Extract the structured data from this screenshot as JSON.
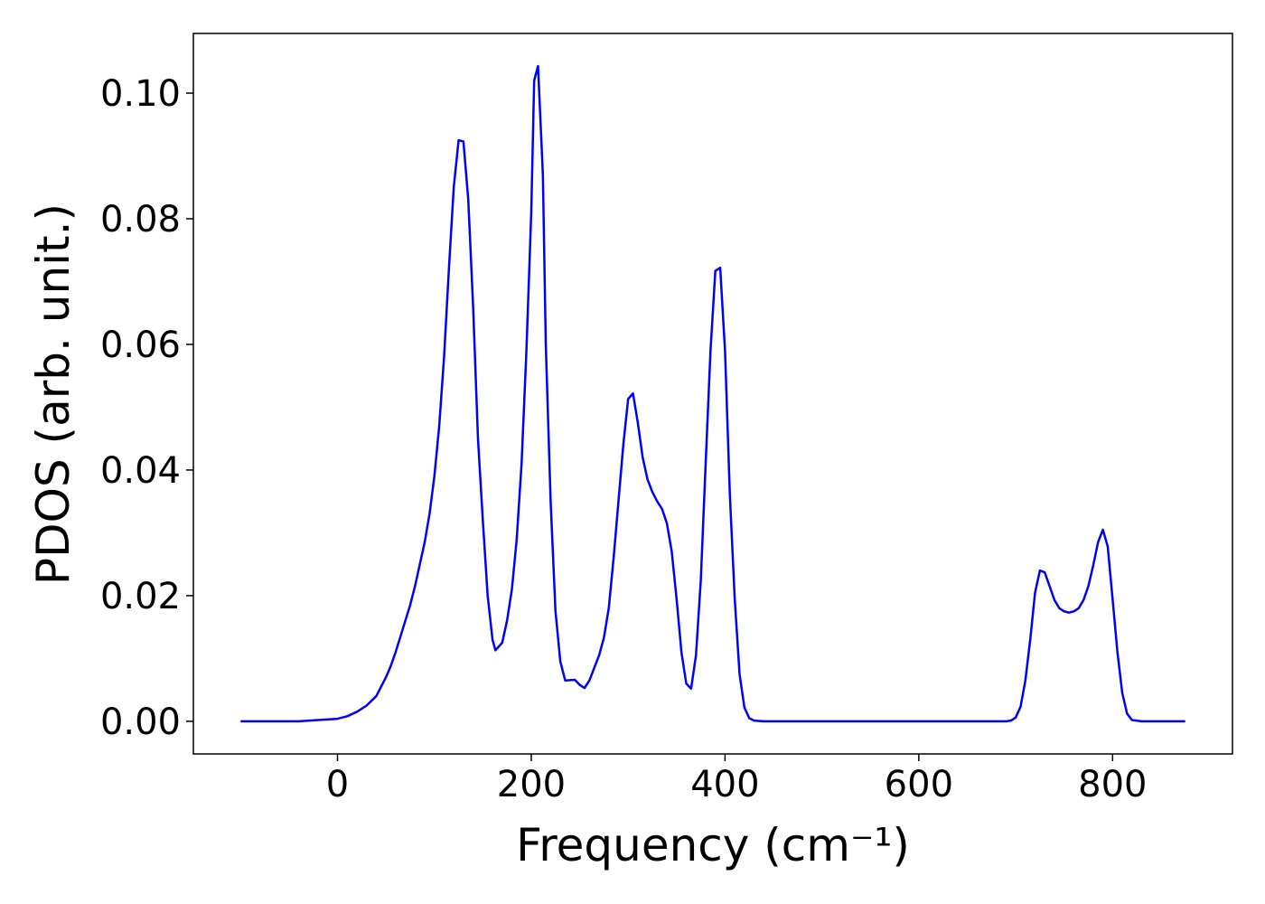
{
  "chart_data": {
    "type": "line",
    "xlabel": "Frequency (cm⁻¹)",
    "ylabel": "PDOS (arb. unit.)",
    "xlim": [
      -148.75,
      923.75
    ],
    "ylim": [
      -0.0052,
      0.1095
    ],
    "xticks": [
      0,
      200,
      400,
      600,
      800
    ],
    "yticks": [
      {
        "value": 0,
        "label": "0.00"
      },
      {
        "value": 0.02,
        "label": "0.02"
      },
      {
        "value": 0.04,
        "label": "0.04"
      },
      {
        "value": 0.06,
        "label": "0.06"
      },
      {
        "value": 0.08,
        "label": "0.08"
      },
      {
        "value": 0.1,
        "label": "0.10"
      }
    ],
    "x": [
      -100,
      -40,
      -20,
      0,
      10,
      20,
      30,
      40,
      45,
      50,
      55,
      60,
      65,
      70,
      75,
      80,
      85,
      90,
      95,
      100,
      105,
      110,
      115,
      120,
      125,
      130,
      135,
      140,
      145,
      150,
      155,
      160,
      163,
      170,
      175,
      180,
      185,
      190,
      195,
      200,
      203,
      207,
      212,
      215,
      220,
      225,
      230,
      235,
      245,
      250,
      255,
      260,
      265,
      270,
      275,
      280,
      285,
      290,
      295,
      300,
      305,
      310,
      315,
      320,
      325,
      330,
      335,
      340,
      345,
      350,
      355,
      360,
      365,
      370,
      375,
      380,
      385,
      390,
      395,
      400,
      405,
      410,
      415,
      420,
      425,
      430,
      440,
      690,
      695,
      700,
      705,
      710,
      715,
      720,
      725,
      730,
      735,
      740,
      745,
      750,
      755,
      760,
      765,
      770,
      775,
      780,
      785,
      790,
      795,
      800,
      805,
      810,
      815,
      820,
      830,
      875
    ],
    "series": [
      {
        "name": "PDOS",
        "color": "#0000ff",
        "values": [
          0,
          0,
          0.0002,
          0.0004,
          0.0008,
          0.0015,
          0.0025,
          0.004,
          0.0055,
          0.007,
          0.0088,
          0.011,
          0.0135,
          0.016,
          0.0185,
          0.0215,
          0.025,
          0.0285,
          0.033,
          0.039,
          0.047,
          0.058,
          0.072,
          0.085,
          0.0925,
          0.0923,
          0.083,
          0.066,
          0.045,
          0.032,
          0.02,
          0.013,
          0.0113,
          0.0125,
          0.016,
          0.021,
          0.029,
          0.041,
          0.059,
          0.081,
          0.102,
          0.1043,
          0.087,
          0.06,
          0.035,
          0.0175,
          0.0095,
          0.0065,
          0.0066,
          0.0058,
          0.0053,
          0.0065,
          0.0085,
          0.0105,
          0.0133,
          0.018,
          0.026,
          0.035,
          0.044,
          0.0513,
          0.0522,
          0.0475,
          0.042,
          0.0385,
          0.0365,
          0.035,
          0.0338,
          0.0315,
          0.027,
          0.0195,
          0.011,
          0.006,
          0.0052,
          0.0105,
          0.0225,
          0.041,
          0.059,
          0.0717,
          0.0722,
          0.059,
          0.036,
          0.0195,
          0.0075,
          0.0022,
          0.0005,
          0.0001,
          0,
          0,
          0.0001,
          0.0006,
          0.0023,
          0.0065,
          0.013,
          0.0205,
          0.024,
          0.0237,
          0.0215,
          0.0193,
          0.018,
          0.0175,
          0.0173,
          0.0175,
          0.018,
          0.0193,
          0.0215,
          0.0248,
          0.0285,
          0.0305,
          0.0278,
          0.0195,
          0.011,
          0.0045,
          0.0012,
          0.0002,
          0,
          0
        ]
      }
    ]
  }
}
